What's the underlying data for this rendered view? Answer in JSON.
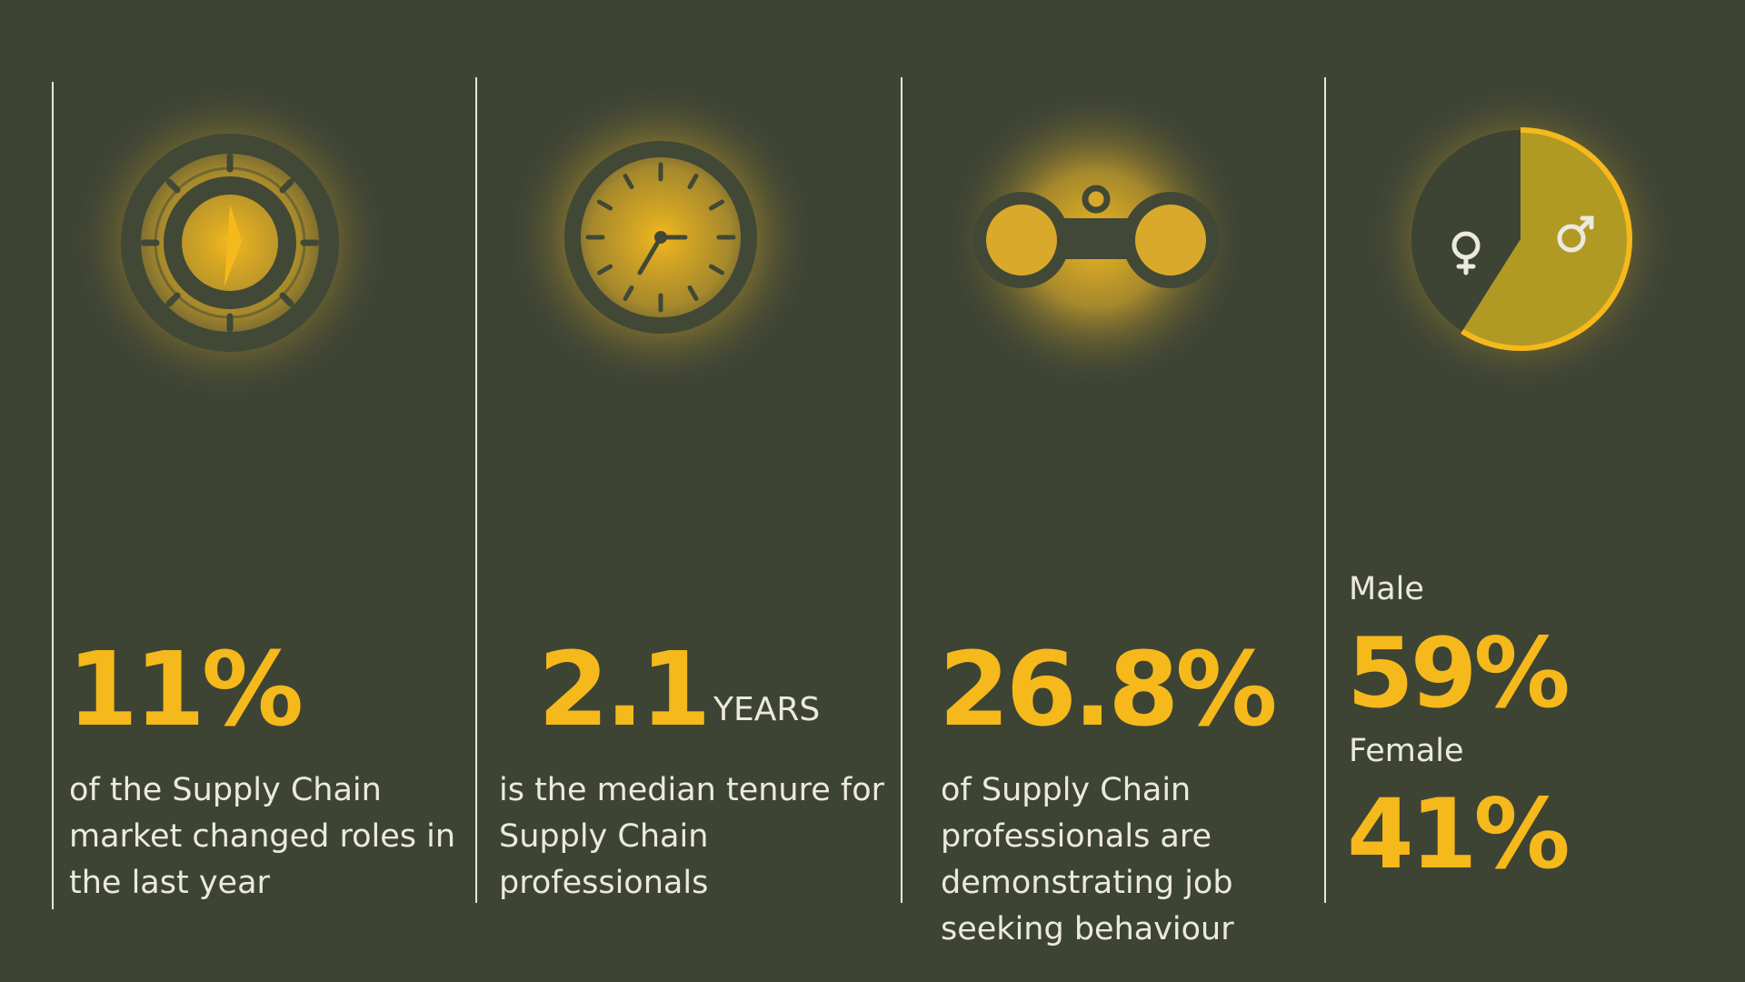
{
  "panels": [
    {
      "stat": "11%",
      "text": "of the Supply Chain market changed roles in the last year"
    },
    {
      "stat": "2.1",
      "unit": "YEARS",
      "text": "is the median tenure for Supply Chain professionals"
    },
    {
      "stat": "26.8%",
      "text": "of Supply Chain professionals are demonstrating job seeking behaviour"
    },
    {
      "stats": [
        {
          "label": "Male",
          "value": 59,
          "value_label": "59%",
          "color": "#b09a24"
        },
        {
          "label": "Female",
          "value": 41,
          "value_label": "41%",
          "color": "#3e4433"
        }
      ]
    }
  ]
}
